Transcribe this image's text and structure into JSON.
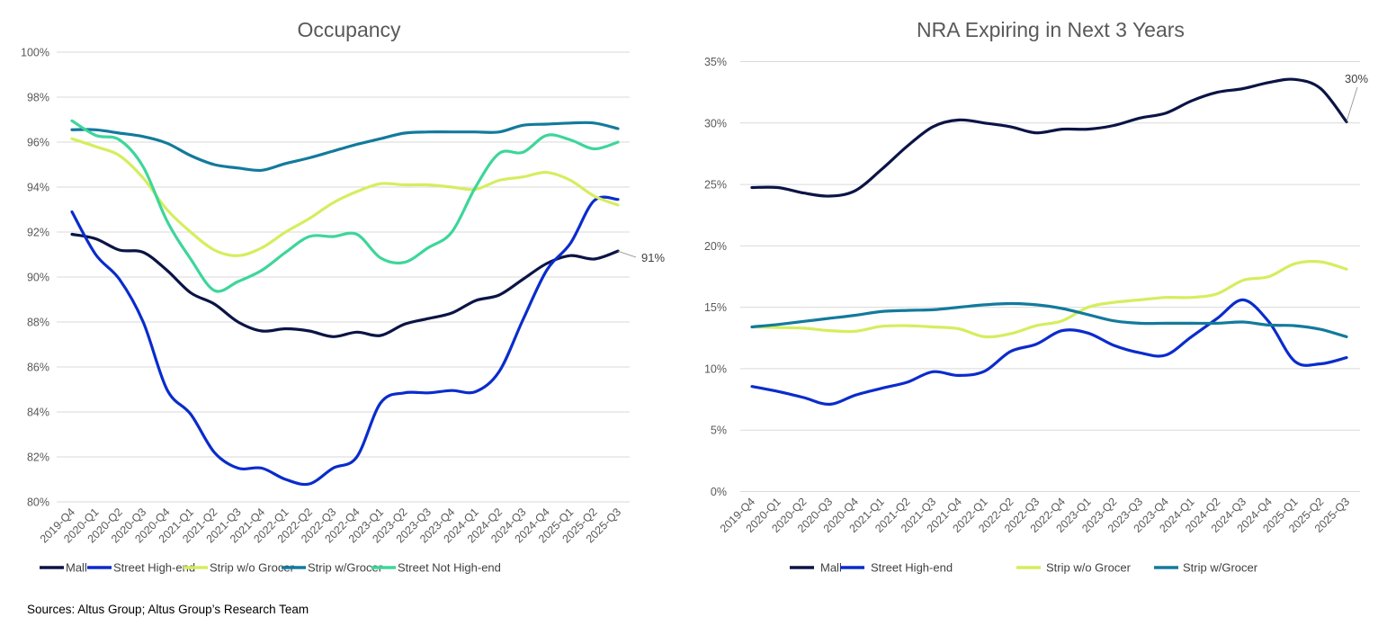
{
  "source_note": "Sources: Altus Group; Altus Group’s Research Team",
  "chart_data": [
    {
      "type": "line",
      "title": "Occupancy",
      "xlabel": "",
      "ylabel": "",
      "categories": [
        "2019-Q4",
        "2020-Q1",
        "2020-Q2",
        "2020-Q3",
        "2020-Q4",
        "2021-Q1",
        "2021-Q2",
        "2021-Q3",
        "2021-Q4",
        "2022-Q1",
        "2022-Q2",
        "2022-Q3",
        "2022-Q4",
        "2023-Q1",
        "2023-Q2",
        "2023-Q3",
        "2023-Q4",
        "2024-Q1",
        "2024-Q2",
        "2024-Q3",
        "2024-Q4",
        "2025-Q1",
        "2025-Q2",
        "2025-Q3"
      ],
      "ylim": [
        80,
        100
      ],
      "yticks": [
        "80%",
        "82%",
        "84%",
        "86%",
        "88%",
        "90%",
        "92%",
        "94%",
        "96%",
        "98%",
        "100%"
      ],
      "y_unit": "%",
      "grid": true,
      "smooth": true,
      "legend": "bottom",
      "series": [
        {
          "name": "Mall",
          "color": "#0b1445",
          "values": [
            91.9,
            91.7,
            91.2,
            91.1,
            90.3,
            89.3,
            88.8,
            88.0,
            87.6,
            87.7,
            87.6,
            87.35,
            87.55,
            87.4,
            87.9,
            88.15,
            88.4,
            88.95,
            89.2,
            89.9,
            90.6,
            90.95,
            90.8,
            91.15
          ]
        },
        {
          "name": "Street High-end",
          "color": "#0a2ccc",
          "values": [
            92.9,
            91.0,
            89.9,
            88.0,
            85.0,
            83.9,
            82.2,
            81.5,
            81.5,
            81.0,
            80.8,
            81.5,
            82.0,
            84.4,
            84.85,
            84.85,
            84.95,
            84.9,
            85.8,
            88.1,
            90.3,
            91.5,
            93.4,
            93.45
          ]
        },
        {
          "name": "Strip w/o Grocer",
          "color": "#d4ee5e",
          "values": [
            96.15,
            95.8,
            95.4,
            94.4,
            93.0,
            92.0,
            91.2,
            90.95,
            91.3,
            92.0,
            92.6,
            93.3,
            93.8,
            94.15,
            94.1,
            94.1,
            94.0,
            93.9,
            94.3,
            94.45,
            94.65,
            94.3,
            93.6,
            93.2
          ]
        },
        {
          "name": "Strip w/Grocer",
          "color": "#137a9c",
          "values": [
            96.55,
            96.55,
            96.4,
            96.25,
            95.95,
            95.4,
            95.0,
            94.85,
            94.75,
            95.05,
            95.3,
            95.6,
            95.9,
            96.15,
            96.4,
            96.45,
            96.45,
            96.45,
            96.45,
            96.75,
            96.8,
            96.85,
            96.85,
            96.6
          ]
        },
        {
          "name": "Street Not High-end",
          "color": "#3dd69a",
          "values": [
            96.95,
            96.3,
            96.1,
            94.9,
            92.5,
            90.8,
            89.4,
            89.8,
            90.3,
            91.1,
            91.8,
            91.8,
            91.9,
            90.85,
            90.65,
            91.3,
            92.0,
            94.0,
            95.5,
            95.55,
            96.3,
            96.1,
            95.7,
            96.0
          ]
        }
      ],
      "annotations": [
        {
          "series": "Mall",
          "category": "2025-Q3",
          "text": "91%"
        }
      ]
    },
    {
      "type": "line",
      "title": "NRA Expiring in Next 3 Years",
      "xlabel": "",
      "ylabel": "",
      "categories": [
        "2019-Q4",
        "2020-Q1",
        "2020-Q2",
        "2020-Q3",
        "2020-Q4",
        "2021-Q1",
        "2021-Q2",
        "2021-Q3",
        "2021-Q4",
        "2022-Q1",
        "2022-Q2",
        "2022-Q3",
        "2022-Q4",
        "2023-Q1",
        "2023-Q2",
        "2023-Q3",
        "2023-Q4",
        "2024-Q1",
        "2024-Q2",
        "2024-Q3",
        "2024-Q4",
        "2025-Q1",
        "2025-Q2",
        "2025-Q3"
      ],
      "ylim": [
        0,
        35
      ],
      "yticks": [
        "0%",
        "5%",
        "10%",
        "15%",
        "20%",
        "25%",
        "30%",
        "35%"
      ],
      "y_unit": "%",
      "grid": true,
      "smooth": true,
      "legend": "bottom",
      "series": [
        {
          "name": "Mall",
          "color": "#0b1445",
          "values": [
            24.75,
            24.75,
            24.3,
            24.05,
            24.5,
            26.2,
            28.1,
            29.7,
            30.25,
            30.0,
            29.7,
            29.2,
            29.5,
            29.5,
            29.8,
            30.4,
            30.8,
            31.8,
            32.5,
            32.8,
            33.3,
            33.55,
            32.8,
            30.1
          ]
        },
        {
          "name": "Street High-end",
          "color": "#0a2ccc",
          "values": [
            8.55,
            8.15,
            7.65,
            7.1,
            7.85,
            8.4,
            8.9,
            9.75,
            9.45,
            9.8,
            11.4,
            12.0,
            13.1,
            12.9,
            11.9,
            11.3,
            11.1,
            12.6,
            14.1,
            15.6,
            13.8,
            10.6,
            10.4,
            10.9
          ]
        },
        {
          "name": "Strip w/o Grocer",
          "color": "#d4ee5e",
          "values": [
            13.4,
            13.35,
            13.3,
            13.1,
            13.05,
            13.45,
            13.5,
            13.4,
            13.25,
            12.6,
            12.85,
            13.5,
            13.9,
            15.0,
            15.4,
            15.6,
            15.8,
            15.8,
            16.1,
            17.2,
            17.5,
            18.55,
            18.7,
            18.1
          ]
        },
        {
          "name": "Strip w/Grocer",
          "color": "#137a9c",
          "values": [
            13.4,
            13.6,
            13.85,
            14.1,
            14.35,
            14.65,
            14.75,
            14.8,
            15.0,
            15.2,
            15.3,
            15.2,
            14.9,
            14.4,
            13.9,
            13.7,
            13.7,
            13.7,
            13.7,
            13.8,
            13.55,
            13.5,
            13.2,
            12.6
          ]
        }
      ],
      "annotations": [
        {
          "series": "Mall",
          "category": "2025-Q3",
          "text": "30%"
        }
      ]
    }
  ]
}
